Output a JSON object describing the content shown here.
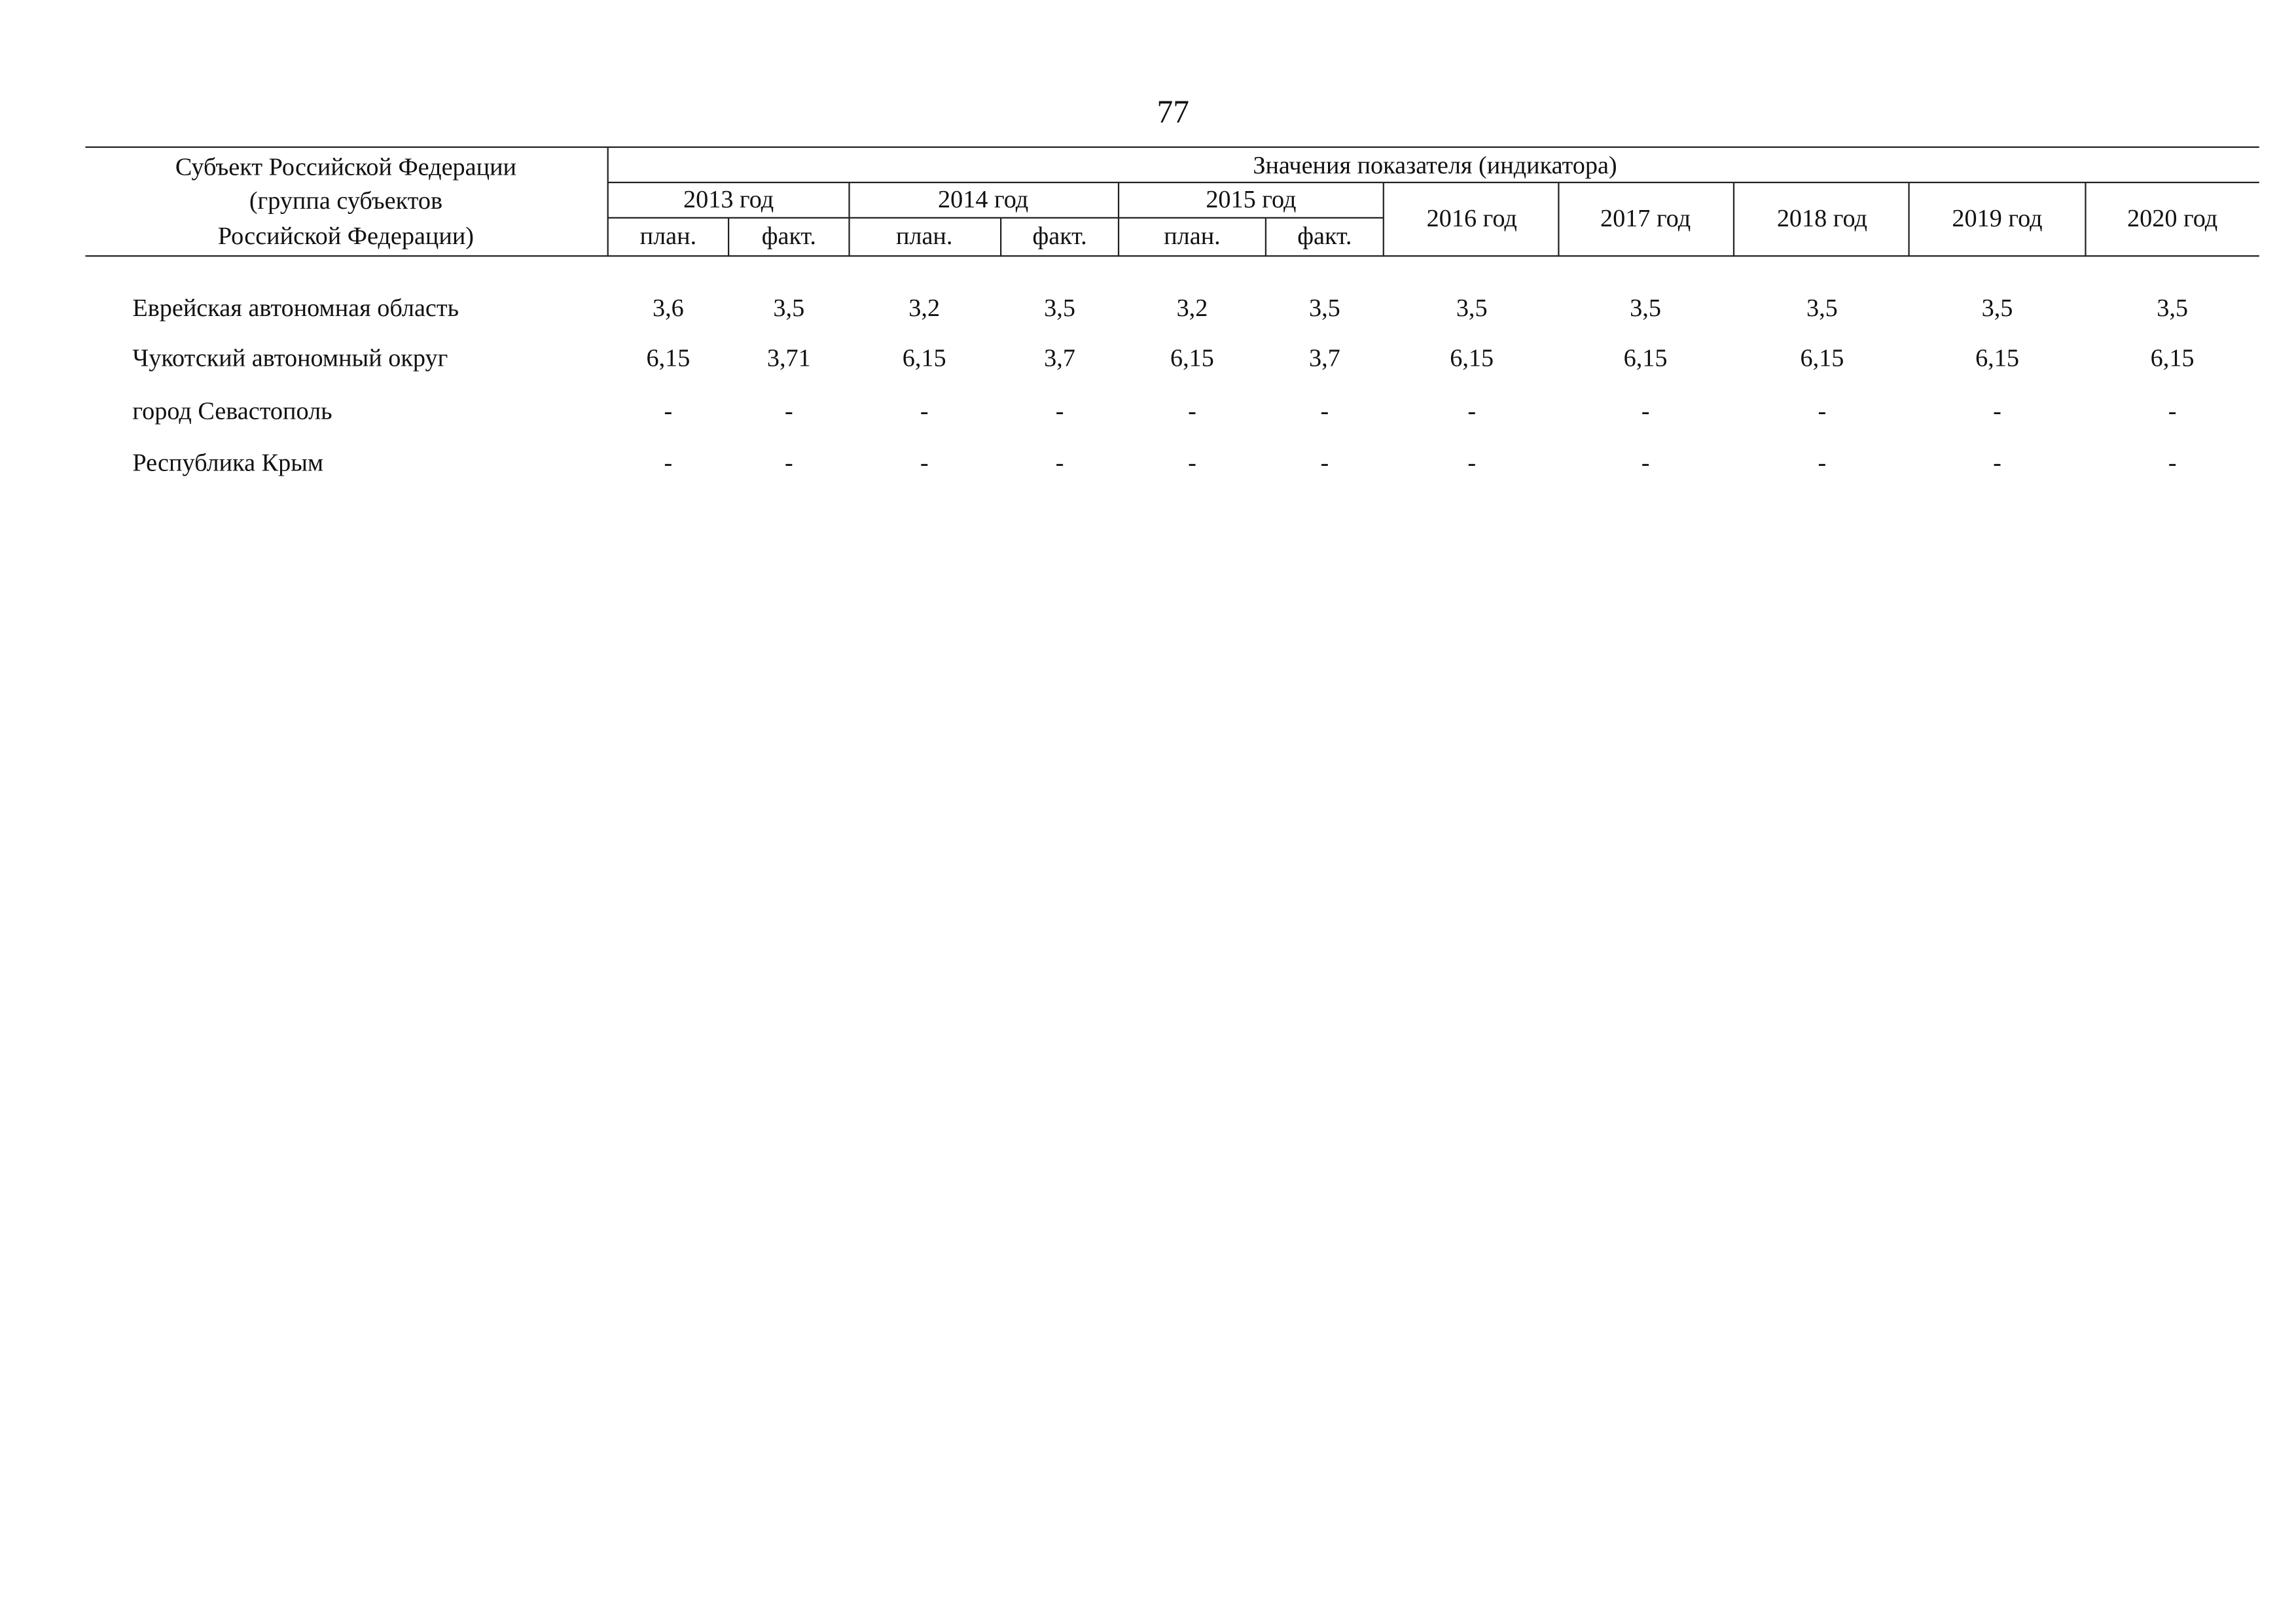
{
  "page_number": "77",
  "table": {
    "header": {
      "subject": [
        "Субъект Российской Федерации",
        "(группа субъектов",
        "Российской Федерации)"
      ],
      "indicator": "Значения показателя (индикатора)",
      "years": [
        "2013 год",
        "2014 год",
        "2015 год",
        "2016 год",
        "2017 год",
        "2018 год",
        "2019 год",
        "2020 год"
      ],
      "sub": [
        "план.",
        "факт.",
        "план.",
        "факт.",
        "план.",
        "факт."
      ]
    },
    "rows": [
      {
        "name": "Еврейская автономная область",
        "values": [
          "3,6",
          "3,5",
          "3,2",
          "3,5",
          "3,2",
          "3,5",
          "3,5",
          "3,5",
          "3,5",
          "3,5",
          "3,5"
        ]
      },
      {
        "name": "Чукотский автономный округ",
        "values": [
          "6,15",
          "3,71",
          "6,15",
          "3,7",
          "6,15",
          "3,7",
          "6,15",
          "6,15",
          "6,15",
          "6,15",
          "6,15"
        ]
      },
      {
        "name": "город Севастополь",
        "values": [
          "-",
          "-",
          "-",
          "-",
          "-",
          "-",
          "-",
          "-",
          "-",
          "-",
          "-"
        ]
      },
      {
        "name": "Республика Крым",
        "values": [
          "-",
          "-",
          "-",
          "-",
          "-",
          "-",
          "-",
          "-",
          "-",
          "-",
          "-"
        ]
      }
    ]
  }
}
